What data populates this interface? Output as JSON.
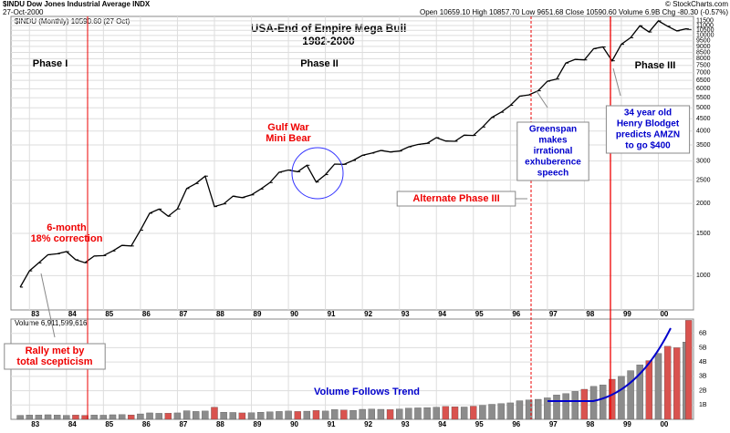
{
  "header": {
    "symbol": "$INDU Dow Jones Industrial Average INDX",
    "date": "27-Oct-2000",
    "legend": "$INDU (Monthly) 10590.60 (27 Oct)",
    "quote": "Open 10659.10 High 10857.70 Low 9651.68 Close 10590.60 Volume 6.9B Chg -80.30 (-0.57%)",
    "credit": "© StockCharts.com"
  },
  "chart_data": {
    "type": "line",
    "title": "USA-End of Empire Mega Bull",
    "subtitle": "1982-2000",
    "log_scale": true,
    "grid": true,
    "color": "#000000",
    "x": [
      1982.75,
      1983,
      1983.25,
      1983.5,
      1983.75,
      1984,
      1984.25,
      1984.5,
      1984.75,
      1985,
      1985.25,
      1985.5,
      1985.75,
      1986,
      1986.25,
      1986.5,
      1986.75,
      1987,
      1987.25,
      1987.5,
      1987.75,
      1988,
      1988.25,
      1988.5,
      1988.75,
      1989,
      1989.25,
      1989.5,
      1989.75,
      1990,
      1990.25,
      1990.5,
      1990.75,
      1991,
      1991.25,
      1991.5,
      1991.75,
      1992,
      1992.25,
      1992.5,
      1992.75,
      1993,
      1993.25,
      1993.5,
      1993.75,
      1994,
      1994.25,
      1994.5,
      1994.75,
      1995,
      1995.25,
      1995.5,
      1995.75,
      1996,
      1996.25,
      1996.5,
      1996.75,
      1997,
      1997.25,
      1997.5,
      1997.75,
      1998,
      1998.25,
      1998.5,
      1998.75,
      1999,
      1999.25,
      1999.5,
      1999.75,
      2000,
      2000.25,
      2000.5,
      2000.75,
      2000.82
    ],
    "values": [
      896,
      1047,
      1130,
      1222,
      1233,
      1259,
      1165,
      1132,
      1207,
      1212,
      1267,
      1336,
      1329,
      1547,
      1819,
      1893,
      1768,
      1896,
      2305,
      2419,
      2596,
      1939,
      1989,
      2142,
      2113,
      2169,
      2294,
      2440,
      2693,
      2753,
      2707,
      2881,
      2453,
      2634,
      2914,
      2907,
      3017,
      3169,
      3236,
      3319,
      3272,
      3301,
      3436,
      3516,
      3555,
      3754,
      3636,
      3625,
      3843,
      3834,
      4158,
      4556,
      4789,
      5117,
      5588,
      5655,
      5882,
      6448,
      6584,
      7673,
      7945,
      7908,
      8800,
      8952,
      7843,
      9181,
      9786,
      10971,
      10337,
      11497,
      10922,
      10448,
      10651,
      10590
    ],
    "xlim": [
      1982.5,
      2000.95
    ],
    "xticks": [
      {
        "value": 1983,
        "label": "83"
      },
      {
        "value": 1984,
        "label": "84"
      },
      {
        "value": 1985,
        "label": "85"
      },
      {
        "value": 1986,
        "label": "86"
      },
      {
        "value": 1987,
        "label": "87"
      },
      {
        "value": 1988,
        "label": "88"
      },
      {
        "value": 1989,
        "label": "89"
      },
      {
        "value": 1990,
        "label": "90"
      },
      {
        "value": 1991,
        "label": "91"
      },
      {
        "value": 1992,
        "label": "92"
      },
      {
        "value": 1993,
        "label": "93"
      },
      {
        "value": 1994,
        "label": "94"
      },
      {
        "value": 1995,
        "label": "95"
      },
      {
        "value": 1996,
        "label": "96"
      },
      {
        "value": 1997,
        "label": "97"
      },
      {
        "value": 1998,
        "label": "98"
      },
      {
        "value": 1999,
        "label": "99"
      },
      {
        "value": 2000,
        "label": "00"
      }
    ],
    "ylim": [
      720,
      12000
    ],
    "yticks": [
      1000,
      1500,
      2000,
      2500,
      3000,
      3500,
      4000,
      4500,
      5000,
      5500,
      6000,
      6500,
      7000,
      7500,
      8000,
      8500,
      9000,
      9500,
      10000,
      10500,
      11000,
      11500
    ],
    "volume": {
      "legend": "Volume 6,911,599,616",
      "up_color": "#8c8c8c",
      "down_color": "#d9534f",
      "values": [
        280000000,
        300000000,
        300000000,
        320000000,
        300000000,
        280000000,
        300000000,
        280000000,
        300000000,
        290000000,
        320000000,
        330000000,
        310000000,
        380000000,
        450000000,
        420000000,
        430000000,
        450000000,
        600000000,
        550000000,
        580000000,
        850000000,
        500000000,
        480000000,
        450000000,
        460000000,
        500000000,
        520000000,
        550000000,
        580000000,
        550000000,
        570000000,
        620000000,
        580000000,
        680000000,
        650000000,
        630000000,
        700000000,
        720000000,
        700000000,
        680000000,
        720000000,
        780000000,
        800000000,
        820000000,
        850000000,
        900000000,
        880000000,
        860000000,
        920000000,
        980000000,
        1050000000,
        1100000000,
        1150000000,
        1300000000,
        1350000000,
        1400000000,
        1500000000,
        1700000000,
        1800000000,
        1950000000,
        2100000000,
        2300000000,
        2400000000,
        2800000000,
        3000000000,
        3400000000,
        3800000000,
        4100000000,
        4600000000,
        5100000000,
        5000000000,
        5400000000,
        6911599616
      ],
      "ylim": [
        0,
        7000000000
      ],
      "yticks": [
        {
          "value": 1000000000,
          "label": "1B"
        },
        {
          "value": 2000000000,
          "label": "2B"
        },
        {
          "value": 3000000000,
          "label": "3B"
        },
        {
          "value": 4000000000,
          "label": "4B"
        },
        {
          "value": 5000000000,
          "label": "5B"
        },
        {
          "value": 6000000000,
          "label": "6B"
        }
      ]
    },
    "annotations": [
      {
        "lines": [
          "Phase I"
        ]
      },
      {
        "lines": [
          "Phase II"
        ]
      },
      {
        "lines": [
          "Phase III"
        ]
      },
      {
        "lines": [
          "Gulf War",
          "Mini Bear"
        ]
      },
      {
        "lines": [
          "6-month",
          "18% correction"
        ]
      },
      {
        "lines": [
          "Alternate Phase III"
        ]
      },
      {
        "lines": [
          "Greenspan",
          "makes",
          "irrational",
          "exhuberence",
          "speech"
        ]
      },
      {
        "lines": [
          "34 year old",
          "Henry Blodget",
          "predicts AMZN",
          "to go $400"
        ]
      },
      {
        "lines": [
          "Rally met by",
          "total scepticism"
        ]
      },
      {
        "lines": [
          "Volume Follows Trend"
        ]
      }
    ]
  }
}
